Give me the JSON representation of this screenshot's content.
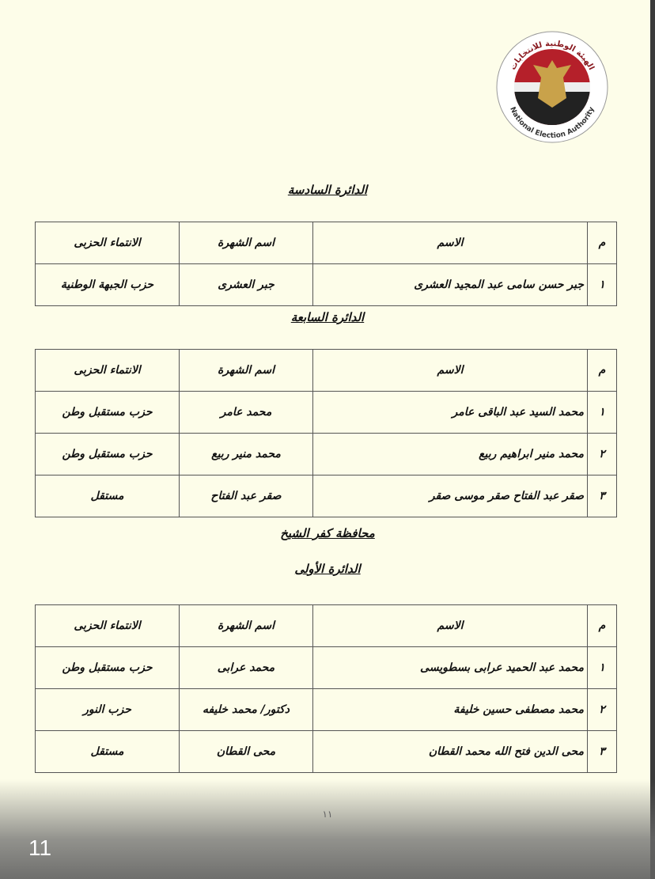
{
  "logo": {
    "arabic_text": "الهيئة الوطنية للانتخابات",
    "english_text": "National Election Authority"
  },
  "columns": {
    "no": "م",
    "name": "الاسم",
    "popular_name": "اسم الشهرة",
    "party": "الانتماء الحزبى"
  },
  "sections": [
    {
      "heading": "الدائرة السادسة",
      "rows": [
        {
          "no": "١",
          "name": "جبر حسن سامى عبد المجيد العشرى",
          "popular_name": "جبر العشرى",
          "party": "حزب الجبهة الوطنية"
        }
      ]
    },
    {
      "heading": "الدائرة السابعة",
      "rows": [
        {
          "no": "١",
          "name": "محمد السيد عبد الباقى عامر",
          "popular_name": "محمد عامر",
          "party": "حزب مستقبل وطن"
        },
        {
          "no": "٢",
          "name": "محمد منير ابراهيم ربيع",
          "popular_name": "محمد منير ربيع",
          "party": "حزب مستقبل وطن"
        },
        {
          "no": "٣",
          "name": "صقر عبد الفتاح صقر موسى صقر",
          "popular_name": "صقر عبد الفتاح",
          "party": "مستقل"
        }
      ]
    },
    {
      "governorate": "محافظة كفر الشيخ",
      "heading": "الدائرة الأولى",
      "rows": [
        {
          "no": "١",
          "name": "محمد عبد الحميد عرابى بسطويسى",
          "popular_name": "محمد عرابى",
          "party": "حزب مستقبل وطن"
        },
        {
          "no": "٢",
          "name": "محمد مصطفى حسين خليفة",
          "popular_name": "دكتور/ محمد خليفه",
          "party": "حزب النور"
        },
        {
          "no": "٣",
          "name": "محى الدين فتح الله محمد القطان",
          "popular_name": "محى القطان",
          "party": "مستقل"
        }
      ]
    }
  ],
  "page_number": "١١",
  "viewer": {
    "page_counter": "11"
  },
  "colors": {
    "paper": "#fdfde9",
    "logo_red": "#b5202a",
    "logo_gold": "#c9a24a"
  }
}
